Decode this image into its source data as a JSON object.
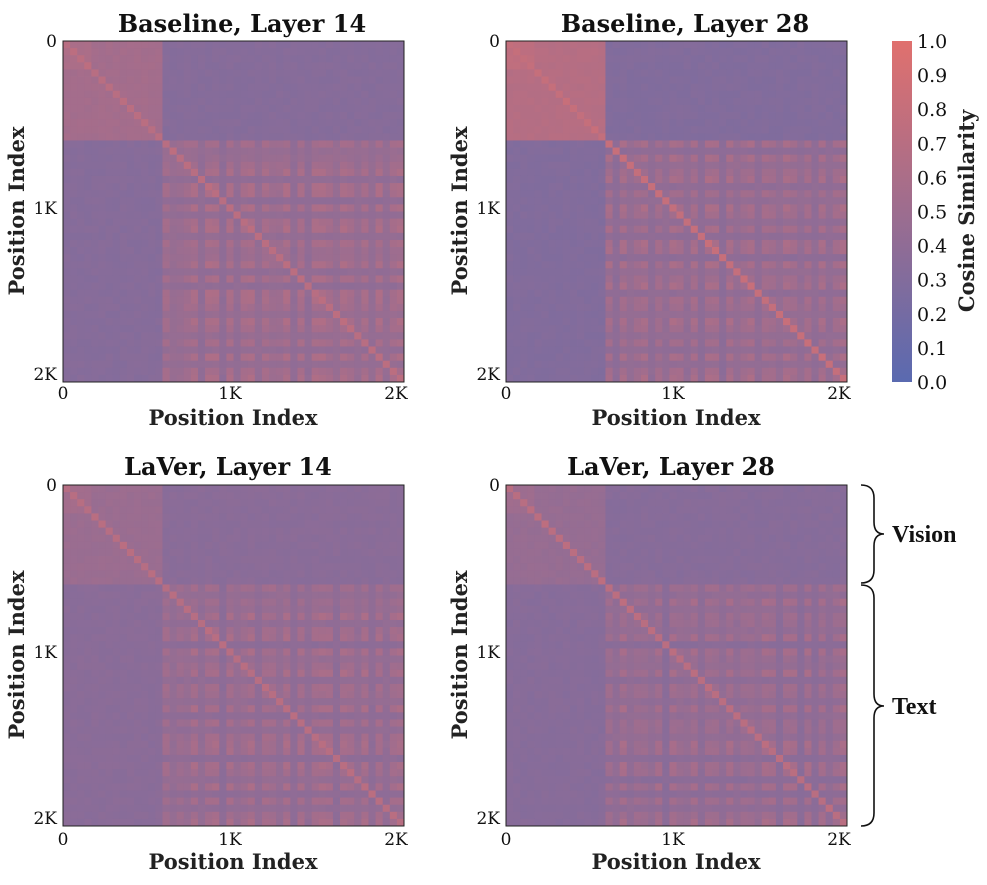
{
  "chart_data": [
    {
      "type": "heatmap",
      "title": "Baseline, Layer 14",
      "xlabel": "Position Index",
      "ylabel": "Position Index",
      "x_ticks": [
        "0",
        "1K",
        "2K"
      ],
      "y_ticks": [
        "0",
        "1K",
        "2K"
      ],
      "axis_range": [
        0,
        2048
      ],
      "vision_end": 600,
      "vision_vision_similarity": 0.55,
      "text_text_similarity": 0.62,
      "cross_similarity": 0.33,
      "text_column_dips": [
        650,
        720,
        830,
        960,
        1050,
        1180,
        1280,
        1390,
        1470,
        1630,
        1760,
        1850,
        1950
      ],
      "diagonal_similarity": 0.72
    },
    {
      "type": "heatmap",
      "title": "Baseline, Layer 28",
      "xlabel": "Position Index",
      "ylabel": "Position Index",
      "x_ticks": [
        "0",
        "1K",
        "2K"
      ],
      "y_ticks": [
        "0",
        "1K",
        "2K"
      ],
      "axis_range": [
        0,
        2048
      ],
      "vision_end": 600,
      "vision_vision_similarity": 0.68,
      "text_text_similarity": 0.6,
      "cross_similarity": 0.3,
      "text_column_dips": [
        660,
        760,
        880,
        950,
        1080,
        1170,
        1300,
        1400,
        1520,
        1630,
        1760,
        1850,
        1950
      ],
      "diagonal_similarity": 0.8
    },
    {
      "type": "heatmap",
      "title": "LaVer, Layer 14",
      "xlabel": "Position Index",
      "ylabel": "Position Index",
      "x_ticks": [
        "0",
        "1K",
        "2K"
      ],
      "y_ticks": [
        "0",
        "1K",
        "2K"
      ],
      "axis_range": [
        0,
        2048
      ],
      "vision_end": 600,
      "vision_vision_similarity": 0.48,
      "text_text_similarity": 0.6,
      "cross_similarity": 0.36,
      "text_column_dips": [
        650,
        730,
        840,
        960,
        1060,
        1180,
        1290,
        1390,
        1480,
        1640,
        1760,
        1860,
        1950
      ],
      "diagonal_similarity": 0.7
    },
    {
      "type": "heatmap",
      "title": "LaVer, Layer 28",
      "xlabel": "Position Index",
      "ylabel": "Position Index",
      "x_ticks": [
        "0",
        "1K",
        "2K"
      ],
      "y_ticks": [
        "0",
        "1K",
        "2K"
      ],
      "axis_range": [
        0,
        2048
      ],
      "vision_end": 600,
      "vision_vision_similarity": 0.45,
      "text_text_similarity": 0.58,
      "cross_similarity": 0.34,
      "text_column_dips": [
        650,
        760,
        860,
        960,
        1070,
        1180,
        1290,
        1400,
        1500,
        1640,
        1770,
        1860,
        1950
      ],
      "diagonal_similarity": 0.72
    }
  ],
  "colorbar": {
    "label": "Cosine Similarity",
    "range": [
      0.0,
      1.0
    ],
    "ticks": [
      "0.0",
      "0.1",
      "0.2",
      "0.3",
      "0.4",
      "0.5",
      "0.6",
      "0.7",
      "0.8",
      "0.9",
      "1.0"
    ],
    "color_low": "#5a6ab0",
    "color_high": "#e0706e"
  },
  "annotations": {
    "vision_label": "Vision",
    "text_label": "Text"
  }
}
